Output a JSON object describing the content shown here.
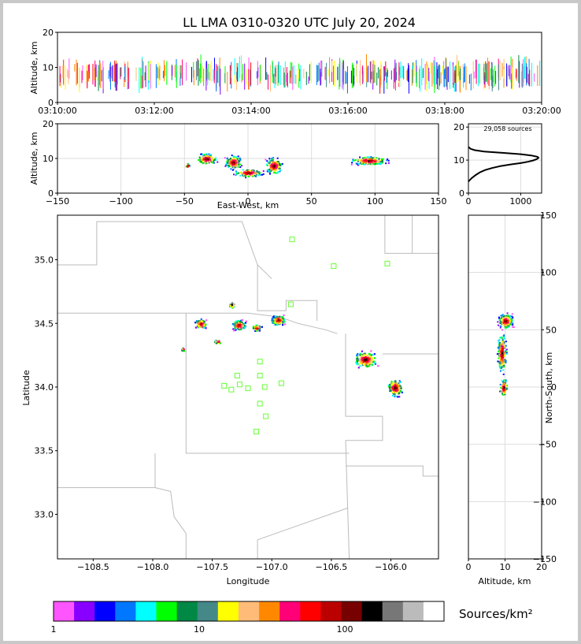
{
  "title": "LL LMA 0310-0320 UTC July 20, 2024",
  "colors": {
    "frame": "#c8c8c8",
    "station": "#66ff33",
    "border": "#bbbbbb",
    "grid": "#dddddd"
  },
  "chart_data": [
    {
      "id": "time-height",
      "type": "scatter",
      "ylabel": "Altitude, km",
      "xlim": [
        "03:10:00",
        "03:20:00"
      ],
      "ylim": [
        0,
        20
      ],
      "xticks": [
        "03:10:00",
        "03:12:00",
        "03:14:00",
        "03:16:00",
        "03:18:00",
        "03:20:00"
      ],
      "yticks": [
        "0",
        "10",
        "20"
      ],
      "note": "dense vertical streaks of sources spanning the whole period, mostly 3-15 km"
    },
    {
      "id": "east-west-height",
      "type": "heatmap",
      "xlabel": "East-West, km",
      "ylabel": "Altitude, km",
      "xlim": [
        -150,
        150
      ],
      "ylim": [
        0,
        20
      ],
      "xticks": [
        "−150",
        "−100",
        "−50",
        "0",
        "50",
        "100",
        "150"
      ],
      "yticks": [
        "0",
        "10",
        "20"
      ]
    },
    {
      "id": "altitude-histogram",
      "type": "line",
      "annotation": "29,058 sources",
      "xlim": [
        0,
        1400
      ],
      "ylim": [
        0,
        21
      ],
      "xticks": [
        "0",
        "1000"
      ],
      "yticks": [
        "0",
        "10",
        "20"
      ],
      "x": [
        0,
        60,
        140,
        220,
        320,
        450,
        620,
        820,
        1000,
        1140,
        1240,
        1310,
        1340,
        1320,
        1200,
        1000,
        650,
        300,
        120,
        40,
        0
      ],
      "y": [
        3.5,
        4.5,
        5.5,
        6.3,
        7.0,
        7.6,
        8.2,
        8.7,
        9.1,
        9.5,
        9.9,
        10.3,
        10.7,
        11.0,
        11.4,
        11.8,
        12.2,
        12.6,
        13.0,
        13.4,
        14.0
      ]
    },
    {
      "id": "plan-view",
      "type": "heatmap",
      "xlabel": "Longitude",
      "ylabel": "Latitude",
      "xlim": [
        -108.8,
        -105.6
      ],
      "ylim": [
        32.65,
        35.35
      ],
      "xticks": [
        "−108.5",
        "−108.0",
        "−107.5",
        "−107.0",
        "−106.5",
        "−106.0"
      ],
      "yticks": [
        "33.0",
        "33.5",
        "34.0",
        "34.5",
        "35.0"
      ],
      "stations": [
        {
          "lon": -106.83,
          "lat": 35.16
        },
        {
          "lon": -106.48,
          "lat": 34.95
        },
        {
          "lon": -106.03,
          "lat": 34.97
        },
        {
          "lon": -106.84,
          "lat": 34.65
        },
        {
          "lon": -107.1,
          "lat": 34.2
        },
        {
          "lon": -107.29,
          "lat": 34.09
        },
        {
          "lon": -107.1,
          "lat": 34.09
        },
        {
          "lon": -107.4,
          "lat": 34.01
        },
        {
          "lon": -107.27,
          "lat": 34.02
        },
        {
          "lon": -107.34,
          "lat": 33.98
        },
        {
          "lon": -107.2,
          "lat": 33.99
        },
        {
          "lon": -107.06,
          "lat": 34.0
        },
        {
          "lon": -106.92,
          "lat": 34.03
        },
        {
          "lon": -107.1,
          "lat": 33.87
        },
        {
          "lon": -107.05,
          "lat": 33.77
        },
        {
          "lon": -107.13,
          "lat": 33.65
        }
      ]
    },
    {
      "id": "north-south-height",
      "type": "heatmap",
      "xlabel": "Altitude, km",
      "ylabel": "North-South, km",
      "xlim": [
        0,
        20
      ],
      "ylim": [
        -150,
        150
      ],
      "xticks": [
        "0",
        "10",
        "20"
      ],
      "yticks": [
        "−150",
        "−100",
        "−50",
        "0",
        "50",
        "100",
        "150"
      ]
    }
  ],
  "colorbar": {
    "label": "Sources/km²",
    "ticks": [
      "1",
      "10",
      "100"
    ],
    "colors": [
      "#ff55ff",
      "#8800ff",
      "#0000ff",
      "#0077ff",
      "#00ffff",
      "#00ff00",
      "#008844",
      "#448888",
      "#ffff00",
      "#ffbb77",
      "#ff8800",
      "#ff0077",
      "#ff0000",
      "#bb0000",
      "#770000",
      "#000000",
      "#777777",
      "#bbbbbb",
      "#ffffff"
    ]
  }
}
